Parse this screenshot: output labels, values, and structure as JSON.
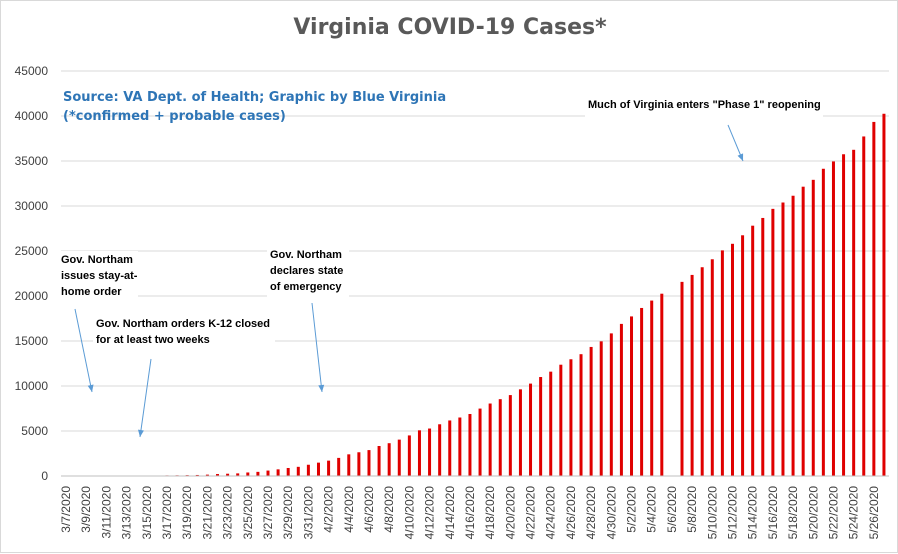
{
  "chart_data": {
    "type": "bar",
    "title": "Virginia COVID-19 Cases*",
    "source_line": "Source: VA Dept. of Health; Graphic by Blue Virginia",
    "note_line": "(*confirmed + probable cases)",
    "xlabel": "",
    "ylabel": "",
    "ylim": [
      0,
      45000
    ],
    "yticks": [
      0,
      5000,
      10000,
      15000,
      20000,
      25000,
      30000,
      35000,
      40000,
      45000
    ],
    "grid": true,
    "bar_color": "#e00000",
    "tick_labels": [
      "3/7/2020",
      "3/9/2020",
      "3/11/2020",
      "3/13/2020",
      "3/15/2020",
      "3/17/2020",
      "3/19/2020",
      "3/21/2020",
      "3/23/2020",
      "3/25/2020",
      "3/27/2020",
      "3/29/2020",
      "3/31/2020",
      "4/2/2020",
      "4/4/2020",
      "4/6/2020",
      "4/8/2020",
      "4/10/2020",
      "4/12/2020",
      "4/14/2020",
      "4/16/2020",
      "4/18/2020",
      "4/20/2020",
      "4/22/2020",
      "4/24/2020",
      "4/26/2020",
      "4/28/2020",
      "4/30/2020",
      "5/2/2020",
      "5/4/2020",
      "5/6/2020",
      "5/8/2020",
      "5/10/2020",
      "5/12/2020",
      "5/14/2020",
      "5/16/2020",
      "5/18/2020",
      "5/20/2020",
      "5/22/2020",
      "5/24/2020",
      "5/26/2020"
    ],
    "categories": [
      "3/7/2020",
      "3/8/2020",
      "3/9/2020",
      "3/10/2020",
      "3/11/2020",
      "3/12/2020",
      "3/13/2020",
      "3/14/2020",
      "3/15/2020",
      "3/16/2020",
      "3/17/2020",
      "3/18/2020",
      "3/19/2020",
      "3/20/2020",
      "3/21/2020",
      "3/22/2020",
      "3/23/2020",
      "3/24/2020",
      "3/25/2020",
      "3/26/2020",
      "3/27/2020",
      "3/28/2020",
      "3/29/2020",
      "3/30/2020",
      "3/31/2020",
      "4/1/2020",
      "4/2/2020",
      "4/3/2020",
      "4/4/2020",
      "4/5/2020",
      "4/6/2020",
      "4/7/2020",
      "4/8/2020",
      "4/9/2020",
      "4/10/2020",
      "4/11/2020",
      "4/12/2020",
      "4/13/2020",
      "4/14/2020",
      "4/15/2020",
      "4/16/2020",
      "4/17/2020",
      "4/18/2020",
      "4/19/2020",
      "4/20/2020",
      "4/21/2020",
      "4/22/2020",
      "4/23/2020",
      "4/24/2020",
      "4/25/2020",
      "4/26/2020",
      "4/27/2020",
      "4/28/2020",
      "4/29/2020",
      "4/30/2020",
      "5/1/2020",
      "5/2/2020",
      "5/3/2020",
      "5/4/2020",
      "5/5/2020",
      "5/6/2020",
      "5/7/2020",
      "5/8/2020",
      "5/9/2020",
      "5/10/2020",
      "5/11/2020",
      "5/12/2020",
      "5/13/2020",
      "5/14/2020",
      "5/15/2020",
      "5/16/2020",
      "5/17/2020",
      "5/18/2020",
      "5/19/2020",
      "5/20/2020",
      "5/21/2020",
      "5/22/2020",
      "5/23/2020",
      "5/24/2020",
      "5/25/2020",
      "5/26/2020",
      "5/27/2020"
    ],
    "values": [
      2,
      2,
      3,
      5,
      9,
      17,
      30,
      41,
      45,
      51,
      67,
      77,
      94,
      114,
      152,
      219,
      254,
      290,
      391,
      460,
      604,
      739,
      890,
      1020,
      1250,
      1484,
      1706,
      2012,
      2407,
      2637,
      2878,
      3333,
      3645,
      4042,
      4509,
      5077,
      5274,
      5747,
      6171,
      6500,
      6889,
      7491,
      8053,
      8537,
      8990,
      9630,
      10266,
      10998,
      11594,
      12366,
      12970,
      13535,
      14339,
      14961,
      15846,
      16901,
      17731,
      18671,
      19492,
      20256,
      null,
      21570,
      22342,
      23196,
      24081,
      25070,
      25800,
      26746,
      27813,
      28672,
      29683,
      30388,
      31140,
      32145,
      32908,
      34137,
      34950,
      35749,
      36244,
      37727,
      39342,
      40249
    ],
    "annotations": [
      {
        "text_lines": [
          "Gov. Northam",
          "issues stay-at-",
          "home order"
        ],
        "target_date": "3/8/2020"
      },
      {
        "text_lines": [
          "Gov. Northam orders K-12 closed",
          "for at least two weeks"
        ],
        "target_date": "3/11/2020"
      },
      {
        "text_lines": [
          "Gov. Northam",
          "declares state",
          "of emergency"
        ],
        "target_date": "3/30/2020"
      },
      {
        "text_lines": [
          "Much of Virginia enters \"Phase 1\" reopening"
        ],
        "target_date": "5/15/2020"
      }
    ]
  }
}
